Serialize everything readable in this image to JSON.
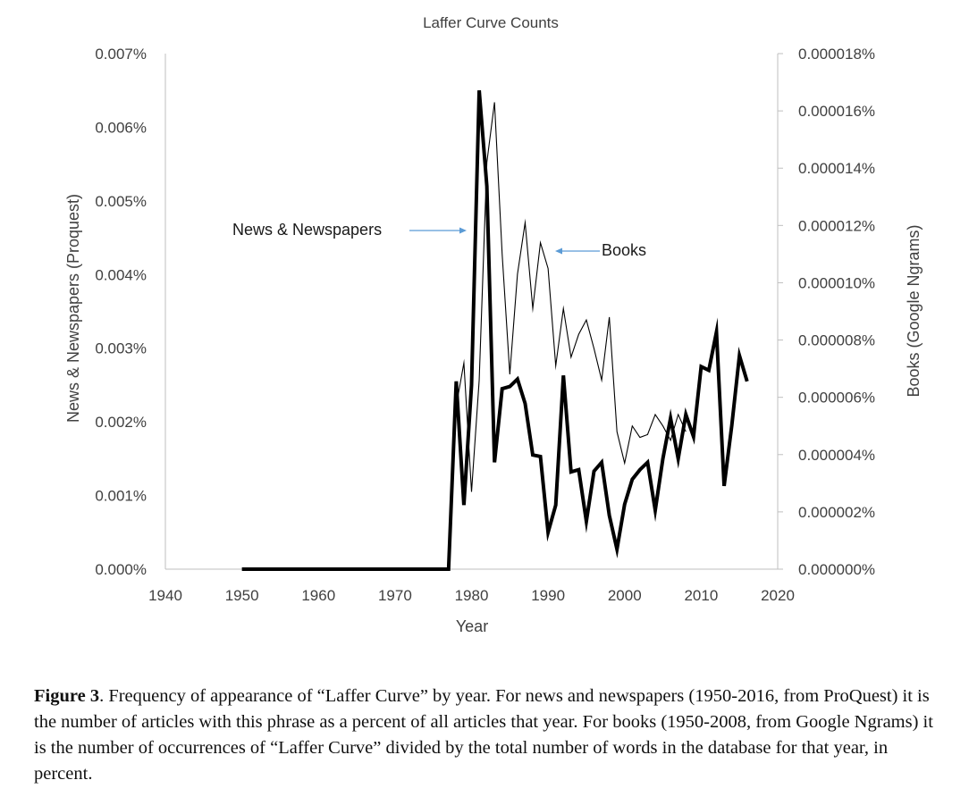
{
  "chart_data": {
    "type": "line",
    "title": "Laffer Curve Counts",
    "xlabel": "Year",
    "ylabel_left": "News & Newspapers (Proquest)",
    "ylabel_right": "Books (Google Ngrams)",
    "xlim": [
      1940,
      2020
    ],
    "xticks": [
      "1940",
      "1950",
      "1960",
      "1970",
      "1980",
      "1990",
      "2000",
      "2010",
      "2020"
    ],
    "ylim_left": [
      0,
      0.007
    ],
    "yticks_left": [
      "0.000%",
      "0.001%",
      "0.002%",
      "0.003%",
      "0.004%",
      "0.005%",
      "0.006%",
      "0.007%"
    ],
    "ylim_right": [
      0,
      1.8e-05
    ],
    "yticks_right": [
      "0.000000%",
      "0.000002%",
      "0.000004%",
      "0.000006%",
      "0.000008%",
      "0.000010%",
      "0.000012%",
      "0.000014%",
      "0.000016%",
      "0.000018%"
    ],
    "grid": false,
    "series": [
      {
        "axis": "left",
        "color": "#000000",
        "style": "thick",
        "x": [
          1950,
          1951,
          1952,
          1953,
          1954,
          1955,
          1956,
          1957,
          1958,
          1959,
          1960,
          1961,
          1962,
          1963,
          1964,
          1965,
          1966,
          1967,
          1968,
          1969,
          1970,
          1971,
          1972,
          1973,
          1974,
          1975,
          1976,
          1977,
          1978,
          1979,
          1980,
          1981,
          1982,
          1983,
          1984,
          1985,
          1986,
          1987,
          1988,
          1989,
          1990,
          1991,
          1992,
          1993,
          1994,
          1995,
          1996,
          1997,
          1998,
          1999,
          2000,
          2001,
          2002,
          2003,
          2004,
          2005,
          2006,
          2007,
          2008,
          2009,
          2010,
          2011,
          2012,
          2013,
          2014,
          2015,
          2016
        ],
        "values": [
          0,
          0,
          0,
          0,
          0,
          0,
          0,
          0,
          0,
          0,
          0,
          0,
          0,
          0,
          0,
          0,
          0,
          0,
          0,
          0,
          0,
          0,
          0,
          0,
          0,
          0,
          0,
          0,
          0.00255,
          0.00087,
          0.0025,
          0.0065,
          0.0052,
          0.00145,
          0.00245,
          0.00248,
          0.00258,
          0.00225,
          0.00155,
          0.00153,
          0.0005,
          0.00087,
          0.00263,
          0.00132,
          0.00135,
          0.00065,
          0.00133,
          0.00145,
          0.00073,
          0.00027,
          0.00088,
          0.00122,
          0.00135,
          0.00145,
          0.0008,
          0.0015,
          0.00205,
          0.0015,
          0.0021,
          0.0018,
          0.00275,
          0.0027,
          0.00322,
          0.00113,
          0.00195,
          0.0029,
          0.00255
        ]
      },
      {
        "axis": "right",
        "color": "#000000",
        "style": "thin",
        "x": [
          1978,
          1979,
          1980,
          1981,
          1982,
          1983,
          1984,
          1985,
          1986,
          1987,
          1988,
          1989,
          1990,
          1991,
          1992,
          1993,
          1994,
          1995,
          1996,
          1997,
          1998,
          1999,
          2000,
          2001,
          2002,
          2003,
          2004,
          2005,
          2006,
          2007,
          2008
        ],
        "values": [
          5.7e-06,
          7.2e-06,
          2.7e-06,
          6.6e-06,
          1.42e-05,
          1.63e-05,
          1.1e-05,
          6.8e-06,
          1.03e-05,
          1.21e-05,
          9.1e-06,
          1.14e-05,
          1.05e-05,
          7.1e-06,
          9.1e-06,
          7.4e-06,
          8.2e-06,
          8.7e-06,
          7.7e-06,
          6.6e-06,
          8.8e-06,
          4.8e-06,
          3.7e-06,
          5e-06,
          4.6e-06,
          4.7e-06,
          5.4e-06,
          5e-06,
          4.5e-06,
          5.4e-06,
          4.8e-06
        ]
      }
    ],
    "annotations": [
      {
        "text": "News & Newspapers",
        "arrow_color": "#5b9bd5"
      },
      {
        "text": "Books",
        "arrow_color": "#5b9bd5"
      }
    ]
  },
  "caption": {
    "label": "Figure 3",
    "text": ".  Frequency of appearance of “Laffer Curve” by year. For news and newspapers (1950-2016, from ProQuest) it is the number of articles with this phrase as a percent of all articles that year. For books (1950-2008, from Google Ngrams) it is the number of occurrences of “Laffer Curve” divided by the total number of words in the database for that year, in percent."
  }
}
